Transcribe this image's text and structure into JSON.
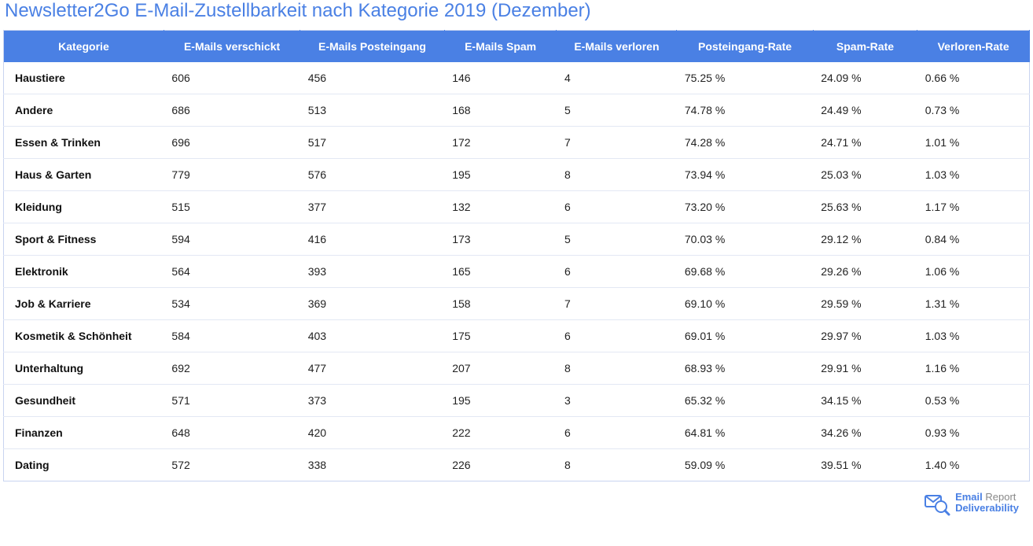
{
  "title": "Newsletter2Go E-Mail-Zustellbarkeit nach Kategorie 2019 (Dezember)",
  "colors": {
    "header_bg": "#4a80e4",
    "header_text": "#ffffff",
    "title_text": "#4a80e4",
    "border": "#c8d4f0",
    "row_border": "#e3e8f4",
    "cell_text": "#222222",
    "cat_text": "#111111",
    "background": "#ffffff"
  },
  "table": {
    "columns": [
      "Kategorie",
      "E-Mails verschickt",
      "E-Mails Posteingang",
      "E-Mails Spam",
      "E-Mails verloren",
      "Posteingang-Rate",
      "Spam-Rate",
      "Verloren-Rate"
    ],
    "rows": [
      [
        "Haustiere",
        "606",
        "456",
        "146",
        "4",
        "75.25 %",
        "24.09 %",
        "0.66 %"
      ],
      [
        "Andere",
        "686",
        "513",
        "168",
        "5",
        "74.78 %",
        "24.49 %",
        "0.73 %"
      ],
      [
        "Essen & Trinken",
        "696",
        "517",
        "172",
        "7",
        "74.28 %",
        "24.71 %",
        "1.01 %"
      ],
      [
        "Haus & Garten",
        "779",
        "576",
        "195",
        "8",
        "73.94 %",
        "25.03 %",
        "1.03 %"
      ],
      [
        "Kleidung",
        "515",
        "377",
        "132",
        "6",
        "73.20 %",
        "25.63 %",
        "1.17 %"
      ],
      [
        "Sport & Fitness",
        "594",
        "416",
        "173",
        "5",
        "70.03 %",
        "29.12 %",
        "0.84 %"
      ],
      [
        "Elektronik",
        "564",
        "393",
        "165",
        "6",
        "69.68 %",
        "29.26 %",
        "1.06 %"
      ],
      [
        "Job & Karriere",
        "534",
        "369",
        "158",
        "7",
        "69.10 %",
        "29.59 %",
        "1.31 %"
      ],
      [
        "Kosmetik & Schönheit",
        "584",
        "403",
        "175",
        "6",
        "69.01 %",
        "29.97 %",
        "1.03 %"
      ],
      [
        "Unterhaltung",
        "692",
        "477",
        "207",
        "8",
        "68.93 %",
        "29.91 %",
        "1.16 %"
      ],
      [
        "Gesundheit",
        "571",
        "373",
        "195",
        "3",
        "65.32 %",
        "34.15 %",
        "0.53 %"
      ],
      [
        "Finanzen",
        "648",
        "420",
        "222",
        "6",
        "64.81 %",
        "34.26 %",
        "0.93 %"
      ],
      [
        "Dating",
        "572",
        "338",
        "226",
        "8",
        "59.09 %",
        "39.51 %",
        "1.40 %"
      ]
    ]
  },
  "footer_logo": {
    "line1a": "Email",
    "line1b": "Report",
    "line2": "Deliverability"
  }
}
